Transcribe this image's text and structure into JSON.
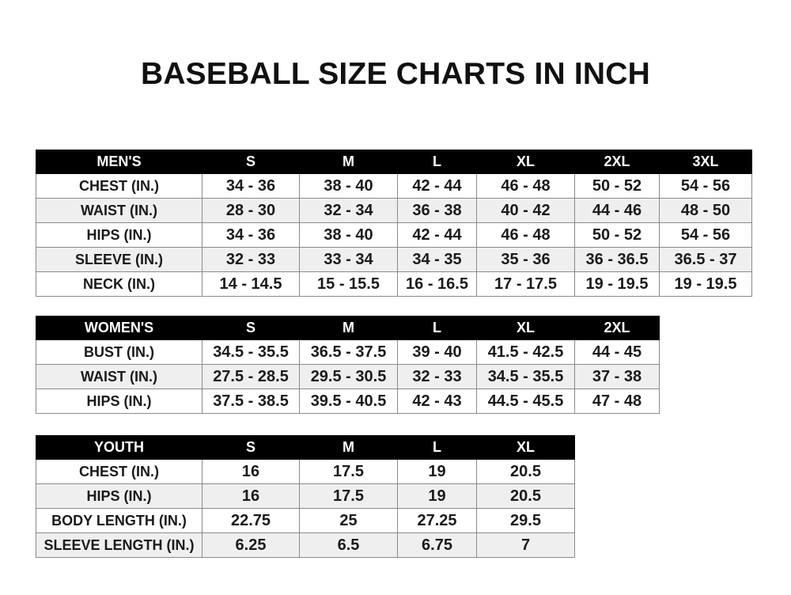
{
  "title": "BASEBALL SIZE CHARTS IN INCH",
  "tables": {
    "men": {
      "headers": [
        "MEN'S",
        "S",
        "M",
        "L",
        "XL",
        "2XL",
        "3XL"
      ],
      "rows": [
        [
          "CHEST (IN.)",
          "34 - 36",
          "38 - 40",
          "42 - 44",
          "46 - 48",
          "50 - 52",
          "54 - 56"
        ],
        [
          "WAIST (IN.)",
          "28 - 30",
          "32 - 34",
          "36 - 38",
          "40 - 42",
          "44 - 46",
          "48 - 50"
        ],
        [
          "HIPS (IN.)",
          "34 - 36",
          "38 - 40",
          "42 - 44",
          "46 - 48",
          "50 - 52",
          "54 - 56"
        ],
        [
          "SLEEVE (IN.)",
          "32 - 33",
          "33 - 34",
          "34 - 35",
          "35 - 36",
          "36 - 36.5",
          "36.5 - 37"
        ],
        [
          "NECK (IN.)",
          "14 - 14.5",
          "15 - 15.5",
          "16 - 16.5",
          "17 - 17.5",
          "19 - 19.5",
          "19 - 19.5"
        ]
      ]
    },
    "women": {
      "headers": [
        "WOMEN'S",
        "S",
        "M",
        "L",
        "XL",
        "2XL"
      ],
      "rows": [
        [
          "BUST (IN.)",
          "34.5 - 35.5",
          "36.5 - 37.5",
          "39 - 40",
          "41.5 - 42.5",
          "44 - 45"
        ],
        [
          "WAIST (IN.)",
          "27.5 - 28.5",
          "29.5 - 30.5",
          "32 - 33",
          "34.5 - 35.5",
          "37 - 38"
        ],
        [
          "HIPS (IN.)",
          "37.5 - 38.5",
          "39.5 - 40.5",
          "42 - 43",
          "44.5 - 45.5",
          "47 - 48"
        ]
      ]
    },
    "youth": {
      "headers": [
        "YOUTH",
        "S",
        "M",
        "L",
        "XL"
      ],
      "rows": [
        [
          "CHEST (IN.)",
          "16",
          "17.5",
          "19",
          "20.5"
        ],
        [
          "HIPS (IN.)",
          "16",
          "17.5",
          "19",
          "20.5"
        ],
        [
          "BODY LENGTH (IN.)",
          "22.75",
          "25",
          "27.25",
          "29.5"
        ],
        [
          "SLEEVE LENGTH (IN.)",
          "6.25",
          "6.5",
          "6.75",
          "7"
        ]
      ]
    }
  }
}
